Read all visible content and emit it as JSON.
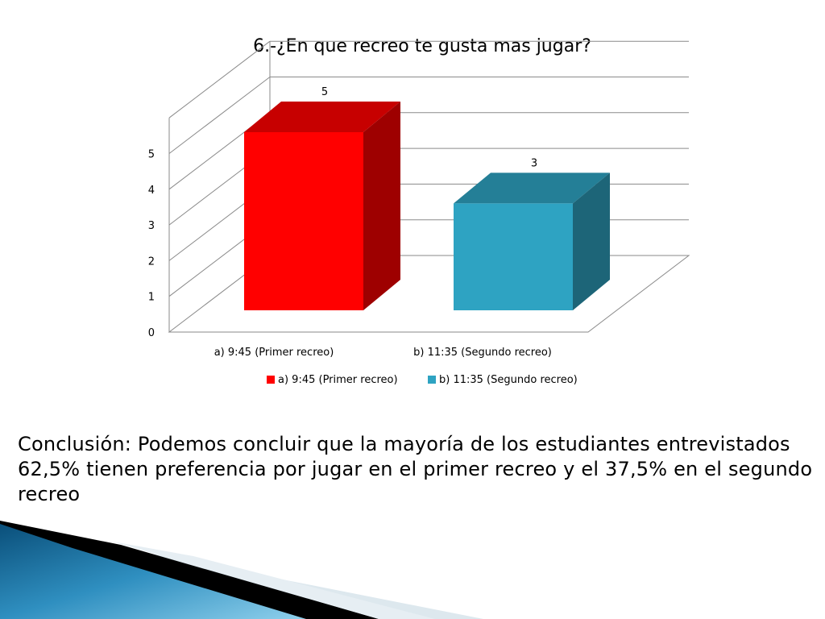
{
  "chart_data": {
    "type": "bar",
    "title": "6.-¿En que recreo te gusta mas jugar?",
    "categories": [
      "a) 9:45 (Primer recreo)",
      "b) 11:35 (Segundo recreo)"
    ],
    "values": [
      5,
      3
    ],
    "data_labels": [
      "5",
      "3"
    ],
    "series_colors": [
      "#ff0000",
      "#2ea3c2"
    ],
    "y_ticks": [
      "0",
      "1",
      "2",
      "3",
      "4",
      "5"
    ],
    "ylim": [
      0,
      5
    ],
    "three_d": true,
    "grid": true,
    "legend_position": "bottom",
    "legend": [
      "a) 9:45 (Primer recreo)",
      "b) 11:35 (Segundo recreo)"
    ]
  },
  "conclusion": "Conclusión: Podemos concluir que la mayoría de los estudiantes entrevistados 62,5% tienen preferencia por jugar en el primer recreo y el 37,5% en el segundo recreo"
}
